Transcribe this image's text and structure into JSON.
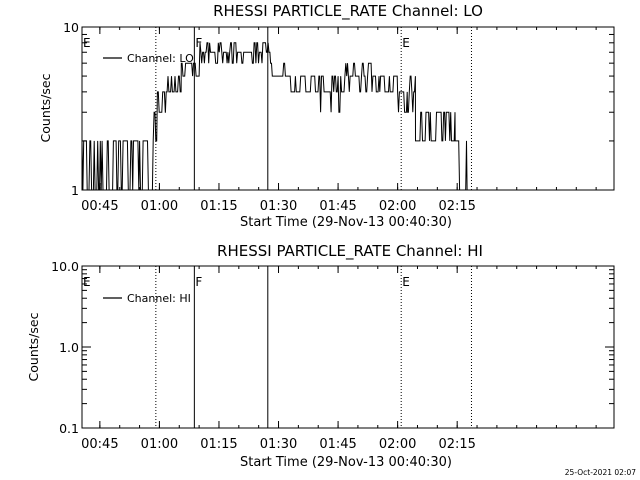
{
  "footer": {
    "timestamp": "25-Oct-2021 02:07"
  },
  "chart_data": [
    {
      "type": "line",
      "title": "RHESSI PARTICLE_RATE Channel: LO",
      "xlabel": "Start Time (29-Nov-13 00:40:30)",
      "ylabel": "Counts/sec",
      "x_unit": "minutes after 00:40:30",
      "xlim": [
        0,
        134
      ],
      "ylim": [
        1,
        10
      ],
      "yscale": "log",
      "xticks": [
        {
          "label": "00:45",
          "x": 4.5
        },
        {
          "label": "01:00",
          "x": 19.5
        },
        {
          "label": "01:15",
          "x": 34.5
        },
        {
          "label": "01:30",
          "x": 49.5
        },
        {
          "label": "01:45",
          "x": 64.5
        },
        {
          "label": "02:00",
          "x": 79.5
        },
        {
          "label": "02:15",
          "x": 94.5
        }
      ],
      "yticks": [
        {
          "label": "1",
          "y": 1
        },
        {
          "label": "10",
          "y": 10
        }
      ],
      "legend": {
        "label": "Channel: LO",
        "position": "top-left"
      },
      "markers": [
        {
          "label": "E",
          "x": 0,
          "style": "none"
        },
        {
          "label": "",
          "x": 18.6,
          "style": "dotted"
        },
        {
          "label": "F",
          "x": 28.3,
          "style": "solid"
        },
        {
          "label": "",
          "x": 46.8,
          "style": "solid"
        },
        {
          "label": "E",
          "x": 80.4,
          "style": "dotted"
        },
        {
          "label": "",
          "x": 98.1,
          "style": "dotted"
        }
      ],
      "series": [
        {
          "name": "Channel: LO",
          "levels": [
            1,
            2,
            3,
            4,
            5,
            6,
            7,
            8
          ],
          "segments": [
            {
              "x0": 0,
              "x1": 17.5,
              "lo": 1,
              "hi": 2
            },
            {
              "x0": 17.5,
              "x1": 19,
              "lo": 2,
              "hi": 3
            },
            {
              "x0": 19,
              "x1": 21,
              "lo": 3,
              "hi": 4
            },
            {
              "x0": 21,
              "x1": 25,
              "lo": 4,
              "hi": 5
            },
            {
              "x0": 25,
              "x1": 29.5,
              "lo": 5,
              "hi": 6
            },
            {
              "x0": 29.5,
              "x1": 47.5,
              "lo": 6,
              "hi": 8
            },
            {
              "x0": 47.5,
              "x1": 52,
              "lo": 5,
              "hi": 6
            },
            {
              "x0": 52,
              "x1": 59,
              "lo": 4,
              "hi": 5
            },
            {
              "x0": 59,
              "x1": 66,
              "lo": 3,
              "hi": 5
            },
            {
              "x0": 66,
              "x1": 75,
              "lo": 4,
              "hi": 6
            },
            {
              "x0": 75,
              "x1": 79.5,
              "lo": 4,
              "hi": 5
            },
            {
              "x0": 79.5,
              "x1": 82,
              "lo": 3,
              "hi": 4
            },
            {
              "x0": 82,
              "x1": 84,
              "lo": 3,
              "hi": 5
            },
            {
              "x0": 84,
              "x1": 90,
              "lo": 2,
              "hi": 3
            },
            {
              "x0": 90,
              "x1": 94,
              "lo": 2,
              "hi": 3
            },
            {
              "x0": 94,
              "x1": 97,
              "lo": 1,
              "hi": 2
            },
            {
              "x0": 97,
              "x1": 98.1,
              "lo": 1,
              "hi": 1
            }
          ]
        }
      ]
    },
    {
      "type": "line",
      "title": "RHESSI PARTICLE_RATE Channel: HI",
      "xlabel": "Start Time (29-Nov-13 00:40:30)",
      "ylabel": "Counts/sec",
      "x_unit": "minutes after 00:40:30",
      "xlim": [
        0,
        134
      ],
      "ylim": [
        0.1,
        10
      ],
      "yscale": "log",
      "xticks": [
        {
          "label": "00:45",
          "x": 4.5
        },
        {
          "label": "01:00",
          "x": 19.5
        },
        {
          "label": "01:15",
          "x": 34.5
        },
        {
          "label": "01:30",
          "x": 49.5
        },
        {
          "label": "01:45",
          "x": 64.5
        },
        {
          "label": "02:00",
          "x": 79.5
        },
        {
          "label": "02:15",
          "x": 94.5
        }
      ],
      "yticks": [
        {
          "label": "0.1",
          "y": 0.1
        },
        {
          "label": "1.0",
          "y": 1
        },
        {
          "label": "10.0",
          "y": 10
        }
      ],
      "legend": {
        "label": "Channel: HI",
        "position": "top-left"
      },
      "markers": [
        {
          "label": "E",
          "x": 0,
          "style": "none"
        },
        {
          "label": "",
          "x": 18.6,
          "style": "dotted"
        },
        {
          "label": "F",
          "x": 28.3,
          "style": "solid"
        },
        {
          "label": "",
          "x": 46.8,
          "style": "solid"
        },
        {
          "label": "E",
          "x": 80.4,
          "style": "dotted"
        },
        {
          "label": "",
          "x": 98.1,
          "style": "dotted"
        }
      ],
      "series": []
    }
  ]
}
